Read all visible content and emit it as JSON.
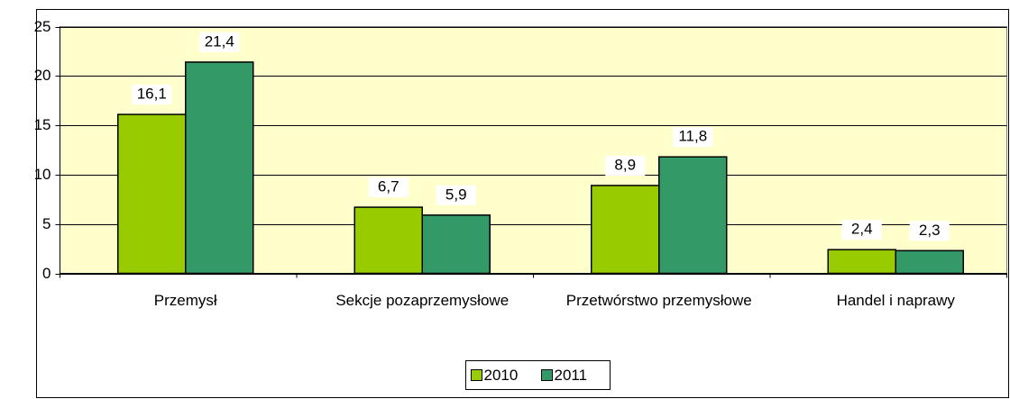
{
  "chart_data": {
    "type": "bar",
    "categories": [
      "Przemysł",
      "Sekcje pozaprzemysłowe",
      "Przetwórstwo przemysłowe",
      "Handel i naprawy"
    ],
    "series": [
      {
        "name": "2010",
        "color": "#99cc00",
        "values": [
          16.1,
          6.7,
          8.9,
          2.4
        ],
        "value_labels": [
          "16,1",
          "6,7",
          "8,9",
          "2,4"
        ]
      },
      {
        "name": "2011",
        "color": "#339966",
        "values": [
          21.4,
          5.9,
          11.8,
          2.3
        ],
        "value_labels": [
          "21,4",
          "5,9",
          "11,8",
          "2,3"
        ]
      }
    ],
    "ylim": [
      0,
      25
    ],
    "yticks": [
      0,
      5,
      10,
      15,
      20,
      25
    ],
    "grid": true,
    "legend": "bottom"
  }
}
